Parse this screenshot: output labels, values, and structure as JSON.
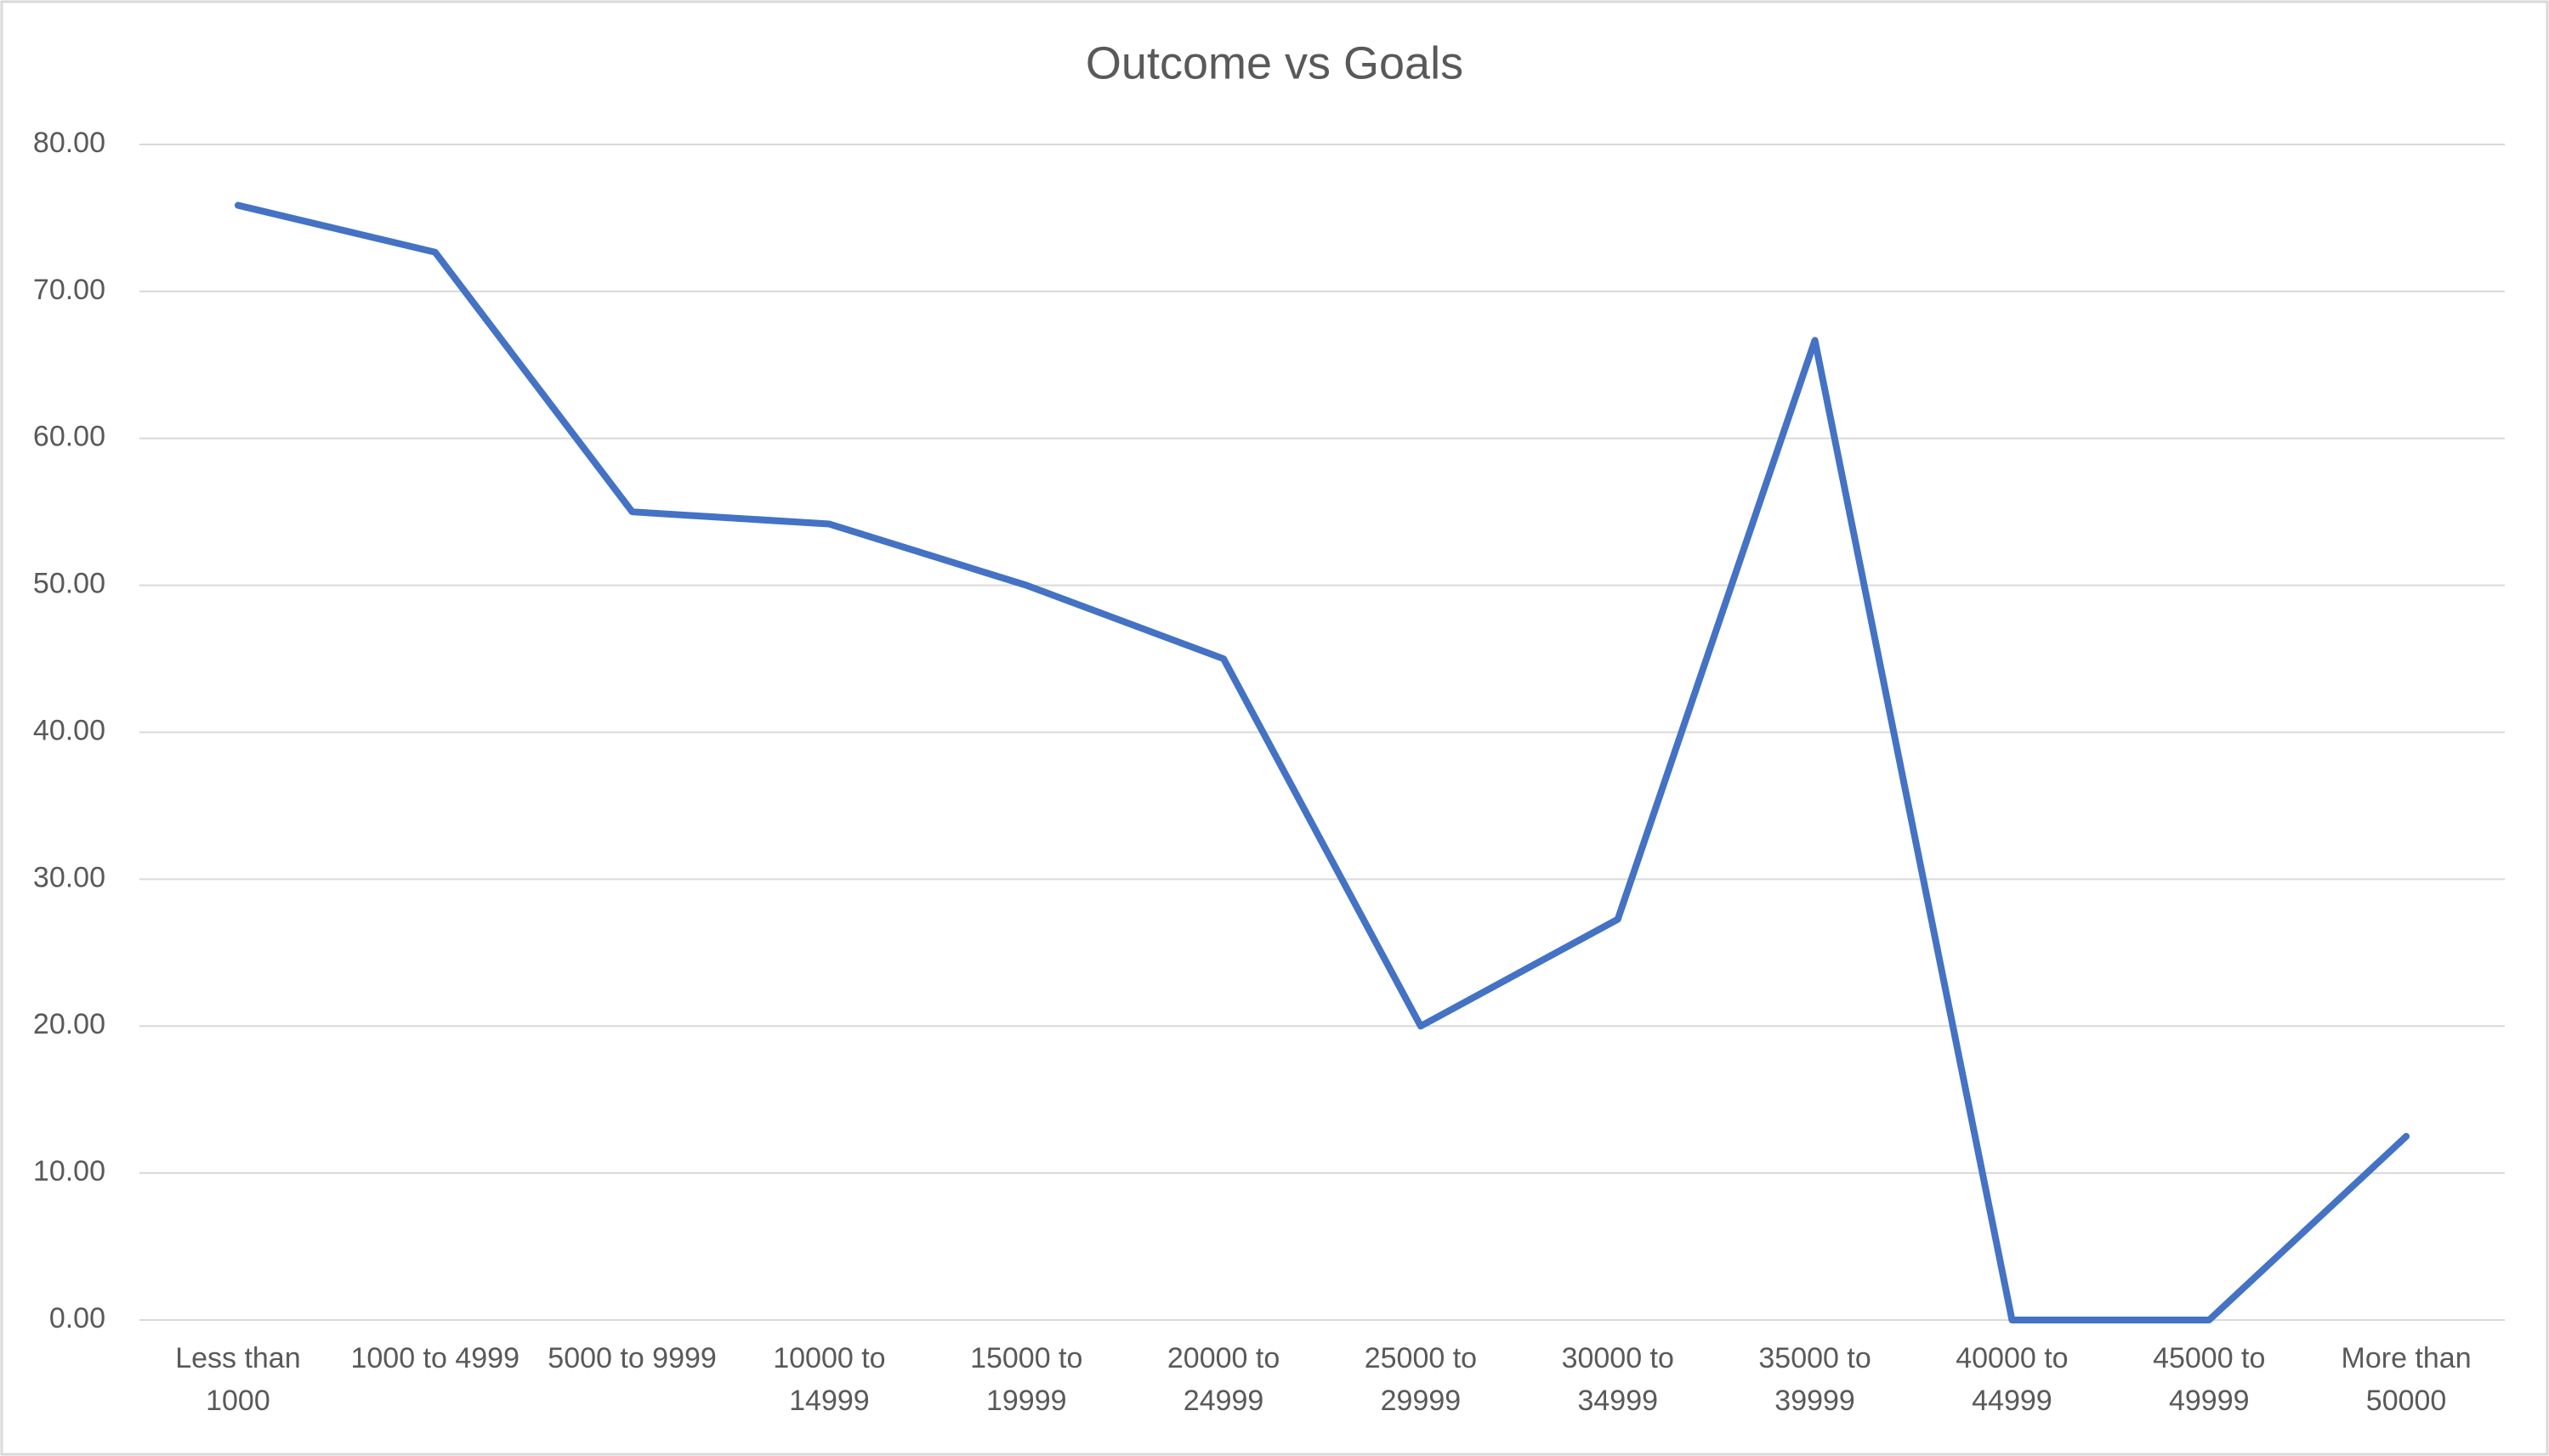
{
  "chart_data": {
    "type": "line",
    "title": "Outcome vs Goals",
    "categories": [
      "Less than 1000",
      "1000 to 4999",
      "5000 to 9999",
      "10000 to 14999",
      "15000 to 19999",
      "20000 to 24999",
      "25000 to 29999",
      "30000 to 34999",
      "35000 to 39999",
      "40000 to 44999",
      "45000 to 49999",
      "More than 50000"
    ],
    "series": [
      {
        "color": "#4472c4",
        "values": [
          75.86,
          72.67,
          55.0,
          54.17,
          50.0,
          45.0,
          20.0,
          27.27,
          66.67,
          0,
          0,
          12.5
        ]
      }
    ],
    "ylim": [
      0,
      80
    ],
    "yticks": [
      {
        "value": 0,
        "label": "0.00"
      },
      {
        "value": 10,
        "label": "10.00"
      },
      {
        "value": 20,
        "label": "20.00"
      },
      {
        "value": 30,
        "label": "30.00"
      },
      {
        "value": 40,
        "label": "40.00"
      },
      {
        "value": 50,
        "label": "50.00"
      },
      {
        "value": 60,
        "label": "60.00"
      },
      {
        "value": 70,
        "label": "70.00"
      },
      {
        "value": 80,
        "label": "80.00"
      }
    ],
    "grid": true
  }
}
